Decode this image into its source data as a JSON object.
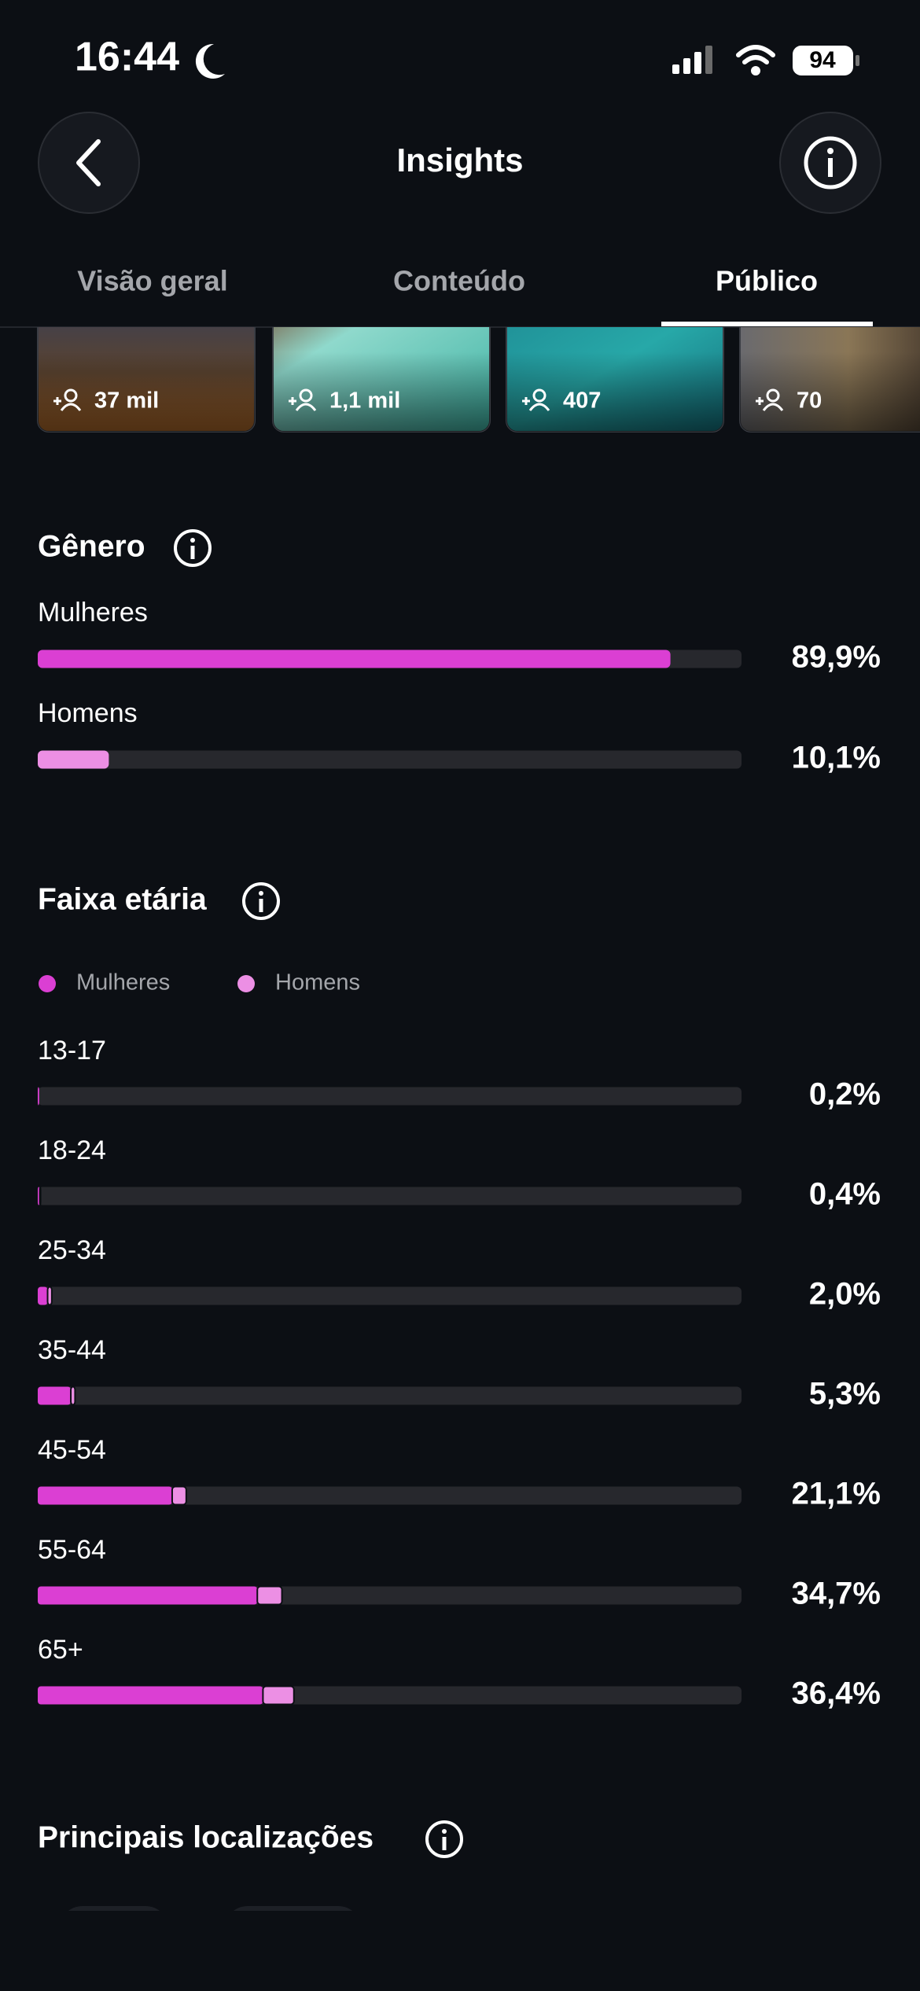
{
  "status_bar": {
    "time": "16:44",
    "battery": "94"
  },
  "header": {
    "title": "Insights"
  },
  "tabs": [
    "Visão geral",
    "Conteúdo",
    "Público"
  ],
  "thumbnails": [
    "37 mil",
    "1,1 mil",
    "407",
    "70"
  ],
  "gender": {
    "title": "Gênero",
    "rows": [
      {
        "label": "Mulheres",
        "value": 89.9,
        "value_label": "89,9%",
        "color": "#db3fd3"
      },
      {
        "label": "Homens",
        "value": 10.1,
        "value_label": "10,1%",
        "color": "#ec8fe4"
      }
    ]
  },
  "age": {
    "title": "Faixa etária",
    "legend": [
      {
        "name": "Mulheres",
        "color": "#db3fd3"
      },
      {
        "name": "Homens",
        "color": "#ec8fe4"
      }
    ],
    "rows": [
      {
        "label": "13-17",
        "women": 0.2,
        "men": 0,
        "total": 0.2,
        "total_label": "0,2%"
      },
      {
        "label": "18-24",
        "women": 0.3,
        "men": 0.1,
        "total": 0.4,
        "total_label": "0,4%"
      },
      {
        "label": "25-34",
        "women": 1.4,
        "men": 0.6,
        "total": 2.0,
        "total_label": "2,0%"
      },
      {
        "label": "35-44",
        "women": 4.7,
        "men": 0.6,
        "total": 5.3,
        "total_label": "5,3%"
      },
      {
        "label": "45-54",
        "women": 19.1,
        "men": 2.0,
        "total": 21.1,
        "total_label": "21,1%"
      },
      {
        "label": "55-64",
        "women": 31.2,
        "men": 3.5,
        "total": 34.7,
        "total_label": "34,7%"
      },
      {
        "label": "65+",
        "women": 32.0,
        "men": 4.4,
        "total": 36.4,
        "total_label": "36,4%"
      }
    ]
  },
  "locations": {
    "title": "Principais localizações"
  }
}
